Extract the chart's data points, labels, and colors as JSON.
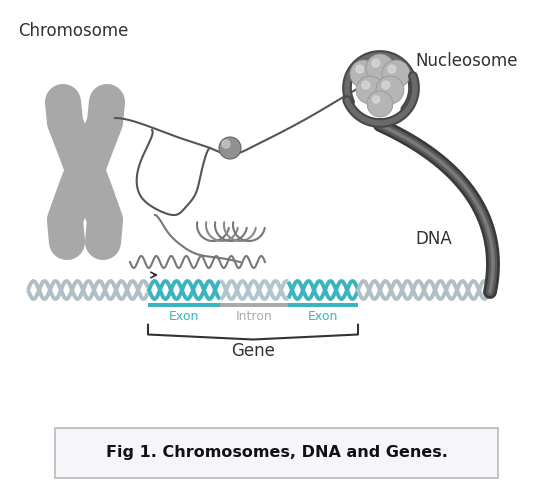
{
  "title": "Fig 1. Chromosomes, DNA and Genes.",
  "label_chromosome": "Chromosome",
  "label_nucleosome": "Nucleosome",
  "label_dna": "DNA",
  "label_exon1": "Exon",
  "label_intron": "Intron",
  "label_exon2": "Exon",
  "label_gene": "Gene",
  "bg_color": "#ffffff",
  "chr_color": "#a8a8a8",
  "dark_gray": "#4a4a4a",
  "teal_color": "#3ab5c0",
  "text_color": "#333333",
  "light_gray": "#aaaaaa",
  "mid_gray": "#888888",
  "helix_gray": "#b0bec5",
  "helix_teal": "#3ab5c0",
  "nuc_sphere": "#c0c0c0",
  "nuc_wrap": "#484848",
  "strand_color": "#555555"
}
